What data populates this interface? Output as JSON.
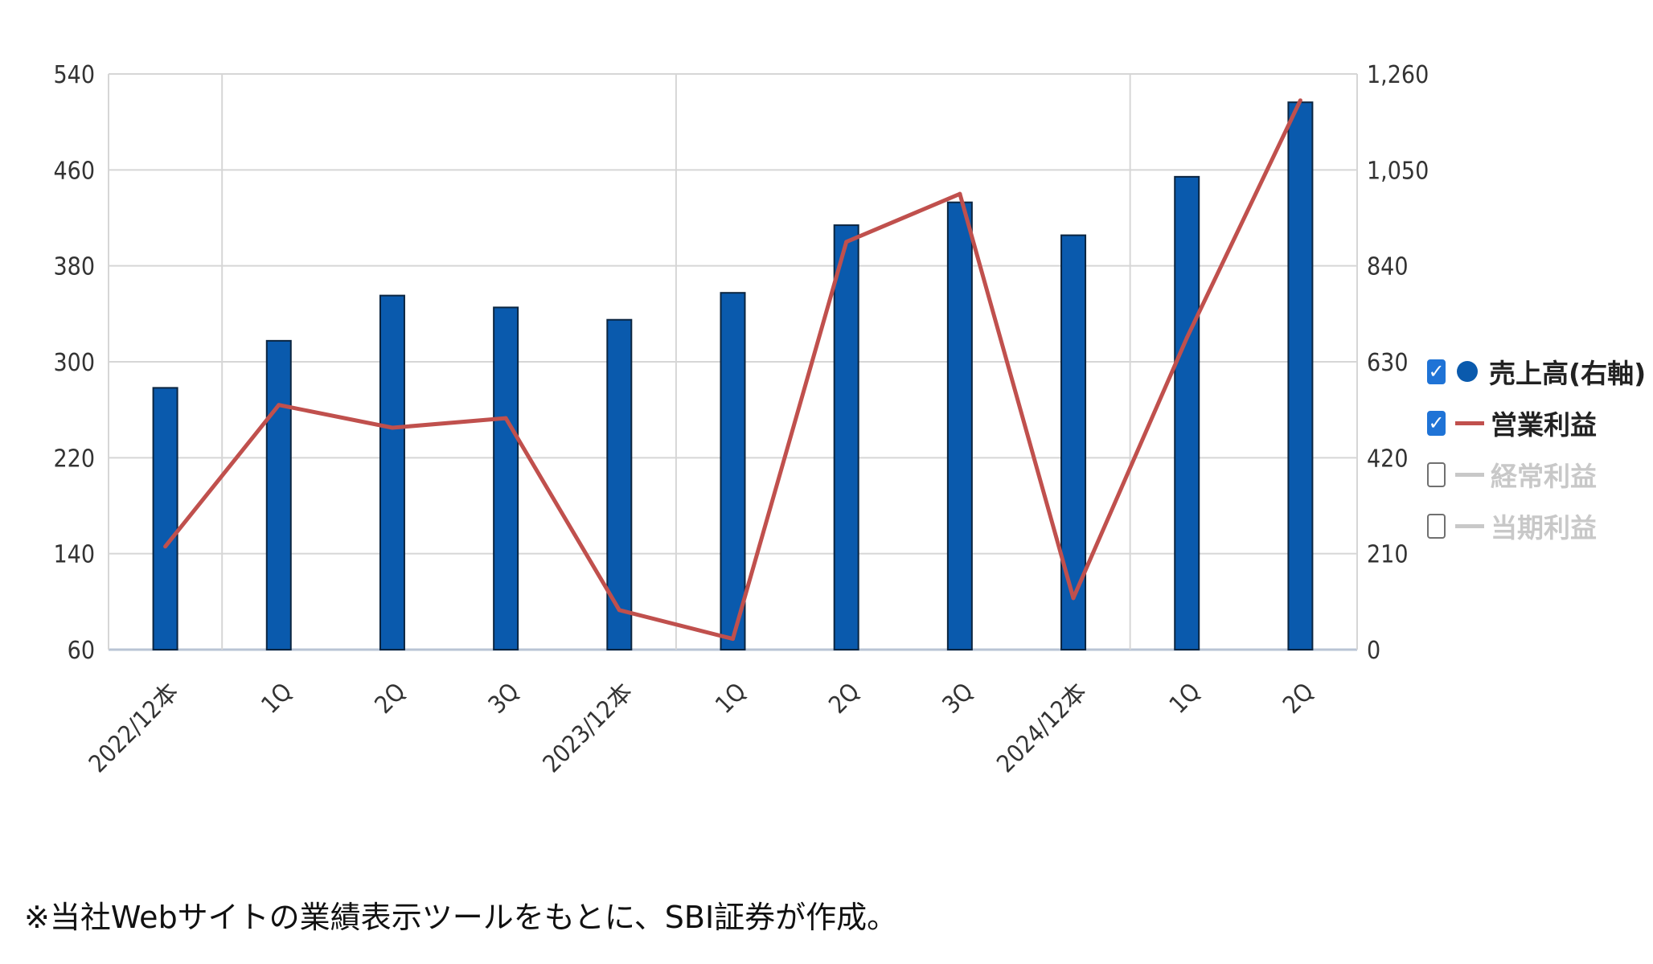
{
  "chart_data": {
    "type": "bar",
    "categories": [
      "2022/12本",
      "1Q",
      "2Q",
      "3Q",
      "2023/12本",
      "1Q",
      "2Q",
      "3Q",
      "2024/12本",
      "1Q",
      "2Q"
    ],
    "series": [
      {
        "name": "売上高(右軸)",
        "type": "bar",
        "axis": "right",
        "color": "#0a5aad",
        "values": [
          573,
          676,
          775,
          749,
          722,
          781,
          929,
          979,
          907,
          1035,
          1198
        ]
      },
      {
        "name": "営業利益",
        "type": "line",
        "axis": "left",
        "color": "#c0504d",
        "values": [
          146,
          264,
          245,
          253,
          93,
          69,
          400,
          440,
          103,
          320,
          518
        ]
      }
    ],
    "left_axis": {
      "min": 60,
      "max": 540,
      "ticks": [
        "60",
        "140",
        "220",
        "300",
        "380",
        "460",
        "540"
      ]
    },
    "right_axis": {
      "min": 0,
      "max": 1260,
      "ticks": [
        "0",
        "210",
        "420",
        "630",
        "840",
        "1,050",
        "1,260"
      ]
    },
    "grid": true,
    "legend_position": "right"
  },
  "legend": {
    "items": [
      {
        "label": "売上高(右軸)",
        "checked": true,
        "marker": "dot",
        "color": "#0a5aad"
      },
      {
        "label": "営業利益",
        "checked": true,
        "marker": "line",
        "color": "#c0504d"
      },
      {
        "label": "経常利益",
        "checked": false,
        "marker": "line",
        "color": "#c8c8c8"
      },
      {
        "label": "当期利益",
        "checked": false,
        "marker": "line",
        "color": "#c8c8c8"
      }
    ]
  },
  "footnote": "※当社Webサイトの業績表示ツールをもとに、SBI証券が作成。"
}
